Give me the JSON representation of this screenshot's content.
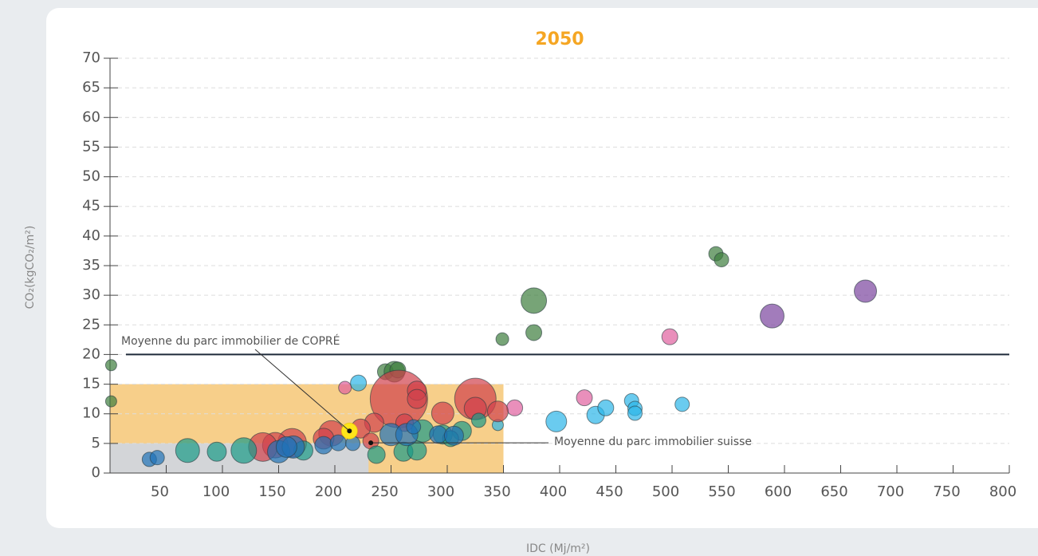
{
  "chart_data": {
    "type": "bubble",
    "title": "2050",
    "x_label": "IDC (Mj/m²)",
    "y_label": "CO₂(kgCO₂/m²)",
    "xlim": [
      0,
      800
    ],
    "ylim": [
      0,
      70
    ],
    "xticks": [
      50,
      100,
      150,
      200,
      250,
      300,
      350,
      400,
      450,
      500,
      550,
      600,
      650,
      700,
      750,
      800
    ],
    "yticks": [
      0,
      5,
      10,
      15,
      20,
      25,
      30,
      35,
      40,
      45,
      50,
      55,
      60,
      65,
      70
    ],
    "grid": true,
    "regions": [
      {
        "xlim": [
          0,
          350
        ],
        "ylim": [
          0,
          15
        ],
        "color": "#f7cf8a"
      },
      {
        "xlim": [
          0,
          230
        ],
        "ylim": [
          0,
          5
        ],
        "color": "#d3d5d8"
      }
    ],
    "reference_line": 20,
    "annotations": [
      {
        "text": "Moyenne du parc immobilier de COPRÉ",
        "x": 213,
        "y": 7.1
      },
      {
        "text": "Moyenne du parc immobilier suisse",
        "x": 232,
        "y": 5.1
      }
    ],
    "series": [
      {
        "color": "#3d7d3d",
        "x": [
          1,
          1,
          349,
          377,
          377,
          539,
          544,
          245,
          253,
          256
        ],
        "y": [
          18.2,
          12.1,
          22.6,
          23.7,
          29.1,
          37,
          36,
          17.1,
          17.1,
          17.4
        ],
        "size": [
          7,
          7,
          8,
          10,
          16,
          9,
          9,
          10,
          13,
          10
        ]
      },
      {
        "color": "#e0609e",
        "x": [
          209,
          360,
          422,
          498
        ],
        "y": [
          14.4,
          11,
          12.7,
          23
        ],
        "size": [
          8,
          10,
          10,
          10
        ]
      },
      {
        "color": "#7b449e",
        "x": [
          589,
          672
        ],
        "y": [
          26.5,
          30.7
        ],
        "size": [
          15,
          14
        ]
      },
      {
        "color": "#2bb5e8",
        "x": [
          221,
          397,
          432,
          441,
          464,
          467,
          467,
          509,
          345
        ],
        "y": [
          15.2,
          8.7,
          9.8,
          11,
          12.2,
          10.9,
          10.1,
          11.6,
          8.1
        ],
        "size": [
          10,
          13,
          11,
          10,
          9,
          9,
          9,
          9,
          7
        ]
      },
      {
        "color": "#d0404c",
        "x": [
          257,
          273,
          273,
          296,
          325,
          325,
          345,
          262,
          235,
          223,
          197,
          162,
          147,
          136,
          190,
          232
        ],
        "y": [
          12.5,
          13.9,
          12.5,
          10.1,
          12.5,
          10.9,
          10.4,
          8.5,
          8.5,
          7.5,
          6.7,
          5.1,
          4.7,
          4.4,
          5.8,
          5.4
        ],
        "size": [
          36,
          12,
          12,
          14,
          26,
          14,
          13,
          11,
          12,
          12,
          16,
          18,
          16,
          18,
          13,
          10
        ]
      },
      {
        "color": "#1a9a88",
        "x": [
          69,
          119,
          95,
          172,
          237,
          261,
          273,
          278,
          296,
          313,
          328,
          303
        ],
        "y": [
          3.8,
          3.8,
          3.6,
          3.8,
          3.1,
          3.6,
          3.8,
          7.1,
          6.5,
          7.1,
          8.9,
          5.8
        ],
        "size": [
          15,
          16,
          12,
          12,
          11,
          12,
          12,
          14,
          12,
          12,
          9,
          10
        ]
      },
      {
        "color": "#1f72b8",
        "x": [
          35,
          42,
          150,
          163,
          190,
          203,
          216,
          250,
          264,
          292,
          306,
          157,
          270
        ],
        "y": [
          2.3,
          2.6,
          3.6,
          4.4,
          4.7,
          5.1,
          5,
          6.5,
          6.5,
          6.5,
          6.3,
          4.4,
          7.8
        ],
        "size": [
          9,
          9,
          14,
          14,
          11,
          10,
          9,
          14,
          14,
          11,
          12,
          13,
          9
        ]
      },
      {
        "color": "#ffe51a",
        "x": [
          213
        ],
        "y": [
          7.1
        ],
        "size": [
          10
        ]
      }
    ]
  }
}
